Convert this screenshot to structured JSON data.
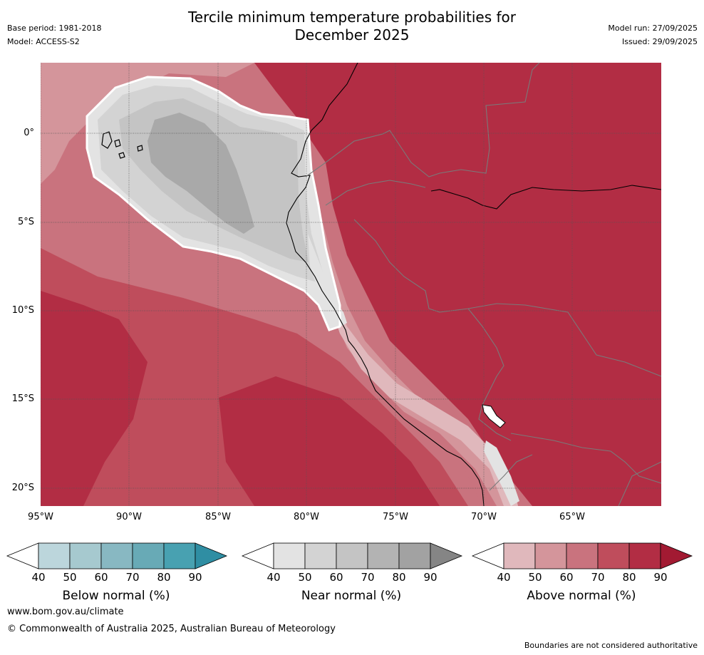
{
  "header": {
    "title_line1": "Tercile minimum temperature probabilities for",
    "title_line2": "December 2025",
    "base_period": "Base period: 1981-2018",
    "model": "Model: ACCESS-S2",
    "model_run": "Model run: 27/09/2025",
    "issued": "Issued: 29/09/2025"
  },
  "map": {
    "lat_labels": [
      "0°",
      "5°S",
      "10°S",
      "15°S",
      "20°S"
    ],
    "lon_labels": [
      "95°W",
      "90°W",
      "85°W",
      "80°W",
      "75°W",
      "70°W",
      "65°W"
    ]
  },
  "colorbars": [
    {
      "label": "Below normal (%)",
      "ticks": [
        "40",
        "50",
        "60",
        "70",
        "80",
        "90"
      ],
      "colors": [
        "#ffffff",
        "#bcd6dc",
        "#a6c9cf",
        "#88b8c2",
        "#68aab6",
        "#48a1b1",
        "#2f8ea3"
      ]
    },
    {
      "label": "Near normal (%)",
      "ticks": [
        "40",
        "50",
        "60",
        "70",
        "80",
        "90"
      ],
      "colors": [
        "#ffffff",
        "#e3e3e3",
        "#d3d3d3",
        "#c4c4c4",
        "#b3b3b3",
        "#a2a2a2",
        "#858585"
      ]
    },
    {
      "label": "Above normal (%)",
      "ticks": [
        "40",
        "50",
        "60",
        "70",
        "80",
        "90"
      ],
      "colors": [
        "#ffffff",
        "#e0b8bc",
        "#d4959b",
        "#c9737e",
        "#bf4d5c",
        "#b22d44",
        "#a21a32"
      ]
    }
  ],
  "footer": {
    "website": "www.bom.gov.au/climate",
    "copyright": "© Commonwealth of Australia 2025, Australian Bureau of Meteorology",
    "disclaimer": "Boundaries are not considered authoritative"
  }
}
